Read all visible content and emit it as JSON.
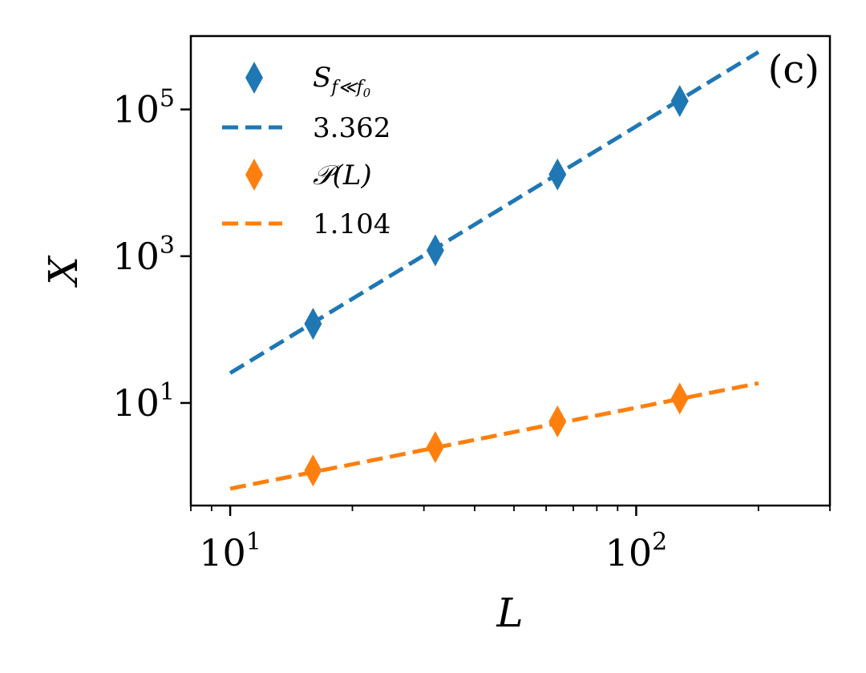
{
  "chart_data": {
    "type": "scatter",
    "xscale": "log",
    "yscale": "log",
    "xlim": [
      8,
      300
    ],
    "ylim": [
      0.4,
      1000000
    ],
    "xlabel": "L",
    "ylabel": "X",
    "panel_label": "(c)",
    "x_ticks": [
      {
        "value": 10,
        "base": "10",
        "exp": "1"
      },
      {
        "value": 100,
        "base": "10",
        "exp": "2"
      }
    ],
    "y_ticks": [
      {
        "value": 10,
        "base": "10",
        "exp": "1"
      },
      {
        "value": 1000,
        "base": "10",
        "exp": "3"
      },
      {
        "value": 100000,
        "base": "10",
        "exp": "5"
      }
    ],
    "series": [
      {
        "name": "S_f<<f0",
        "legend": {
          "main": "S",
          "sub": "f≪f",
          "sub2": "0"
        },
        "color": "#1f77b4",
        "marker": "diamond",
        "x": [
          16,
          32,
          64,
          128
        ],
        "y": [
          120,
          1200,
          13000,
          130000
        ]
      },
      {
        "name": "3.362",
        "legend_label": "3.362",
        "color": "#1f77b4",
        "style": "dashed",
        "exponent": 3.362,
        "x_range": [
          10,
          200
        ],
        "amplitude": 0.0111
      },
      {
        "name": "P(L)",
        "legend_label": "𝒫(L)",
        "color": "#ff7f0e",
        "marker": "diamond",
        "x": [
          16,
          32,
          64,
          128
        ],
        "y": [
          1.2,
          2.5,
          5.6,
          11.5
        ]
      },
      {
        "name": "1.104",
        "legend_label": "1.104",
        "color": "#ff7f0e",
        "style": "dashed",
        "exponent": 1.104,
        "x_range": [
          10,
          200
        ],
        "amplitude": 0.0535
      }
    ]
  }
}
